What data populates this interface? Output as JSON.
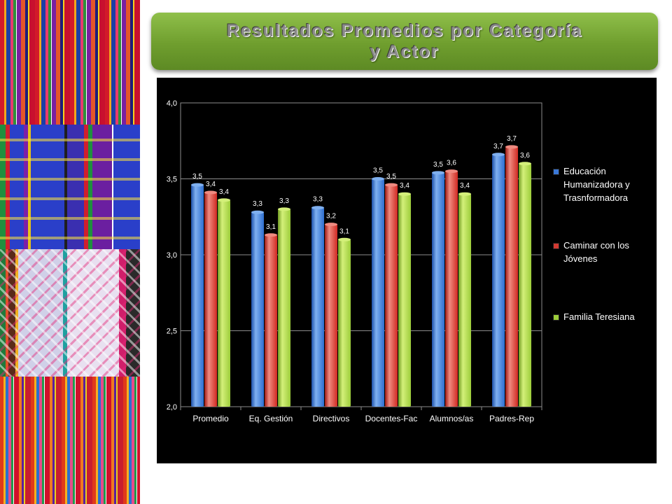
{
  "slide": {
    "title_line1": "Resultados Promedios por Categoría",
    "title_line2": "y Actor"
  },
  "colors": {
    "banner": "#7aa83a",
    "chart_background": "#000000",
    "series": [
      "#3a78d8",
      "#d23a32",
      "#9ccc3a"
    ]
  },
  "chart_data": {
    "type": "bar",
    "categories": [
      "Promedio",
      "Eq. Gestión",
      "Directivos",
      "Docentes-Fac",
      "Alumnos/as",
      "Padres-Rep"
    ],
    "series": [
      {
        "name": "Educación Humanizadora y Trasnformadora",
        "values": [
          3.46,
          3.28,
          3.31,
          3.5,
          3.54,
          3.66
        ],
        "labels": [
          "3,5",
          "3,3",
          "3,3",
          "3,5",
          "3,5",
          "3,7"
        ]
      },
      {
        "name": "Caminar con los Jóvenes",
        "values": [
          3.41,
          3.13,
          3.2,
          3.46,
          3.55,
          3.71
        ],
        "labels": [
          "3,4",
          "3,1",
          "3,2",
          "3,5",
          "3,6",
          "3,7"
        ]
      },
      {
        "name": "Familia Teresiana",
        "values": [
          3.36,
          3.3,
          3.1,
          3.4,
          3.4,
          3.6
        ],
        "labels": [
          "3,4",
          "3,3",
          "3,1",
          "3,4",
          "3,4",
          "3,6"
        ]
      }
    ],
    "y_ticks": [
      "2,0",
      "2,5",
      "3,0",
      "3,5",
      "4,0"
    ],
    "ylim": [
      2.0,
      4.0
    ],
    "grid": true,
    "legend_position": "right",
    "xlabel": "",
    "ylabel": ""
  }
}
